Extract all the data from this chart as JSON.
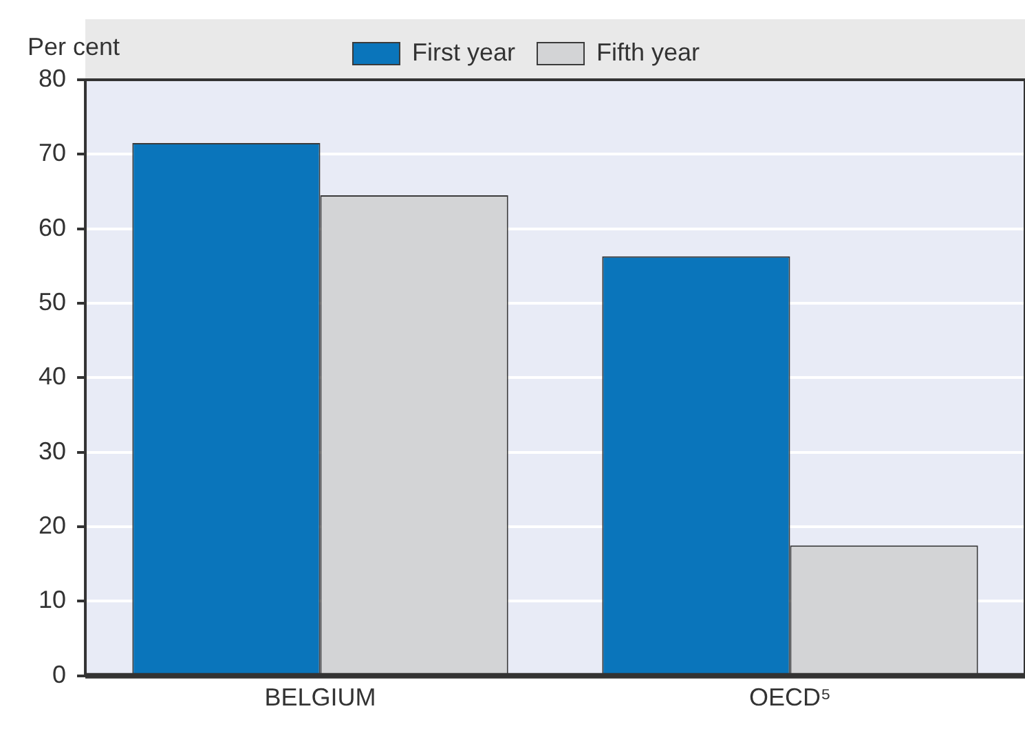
{
  "chart_data": {
    "type": "bar",
    "ylabel": "Per cent",
    "categories": [
      "BELGIUM",
      "OECD⁵"
    ],
    "series": [
      {
        "name": "First year",
        "color": "#0a75bb",
        "values": [
          71.5,
          56.3
        ]
      },
      {
        "name": "Fifth year",
        "color": "#d3d4d6",
        "values": [
          64.5,
          17.5
        ]
      }
    ],
    "ylim": [
      0,
      80
    ],
    "yticks": [
      0,
      10,
      20,
      30,
      40,
      50,
      60,
      70,
      80
    ],
    "grid": "y",
    "legend": "top"
  }
}
